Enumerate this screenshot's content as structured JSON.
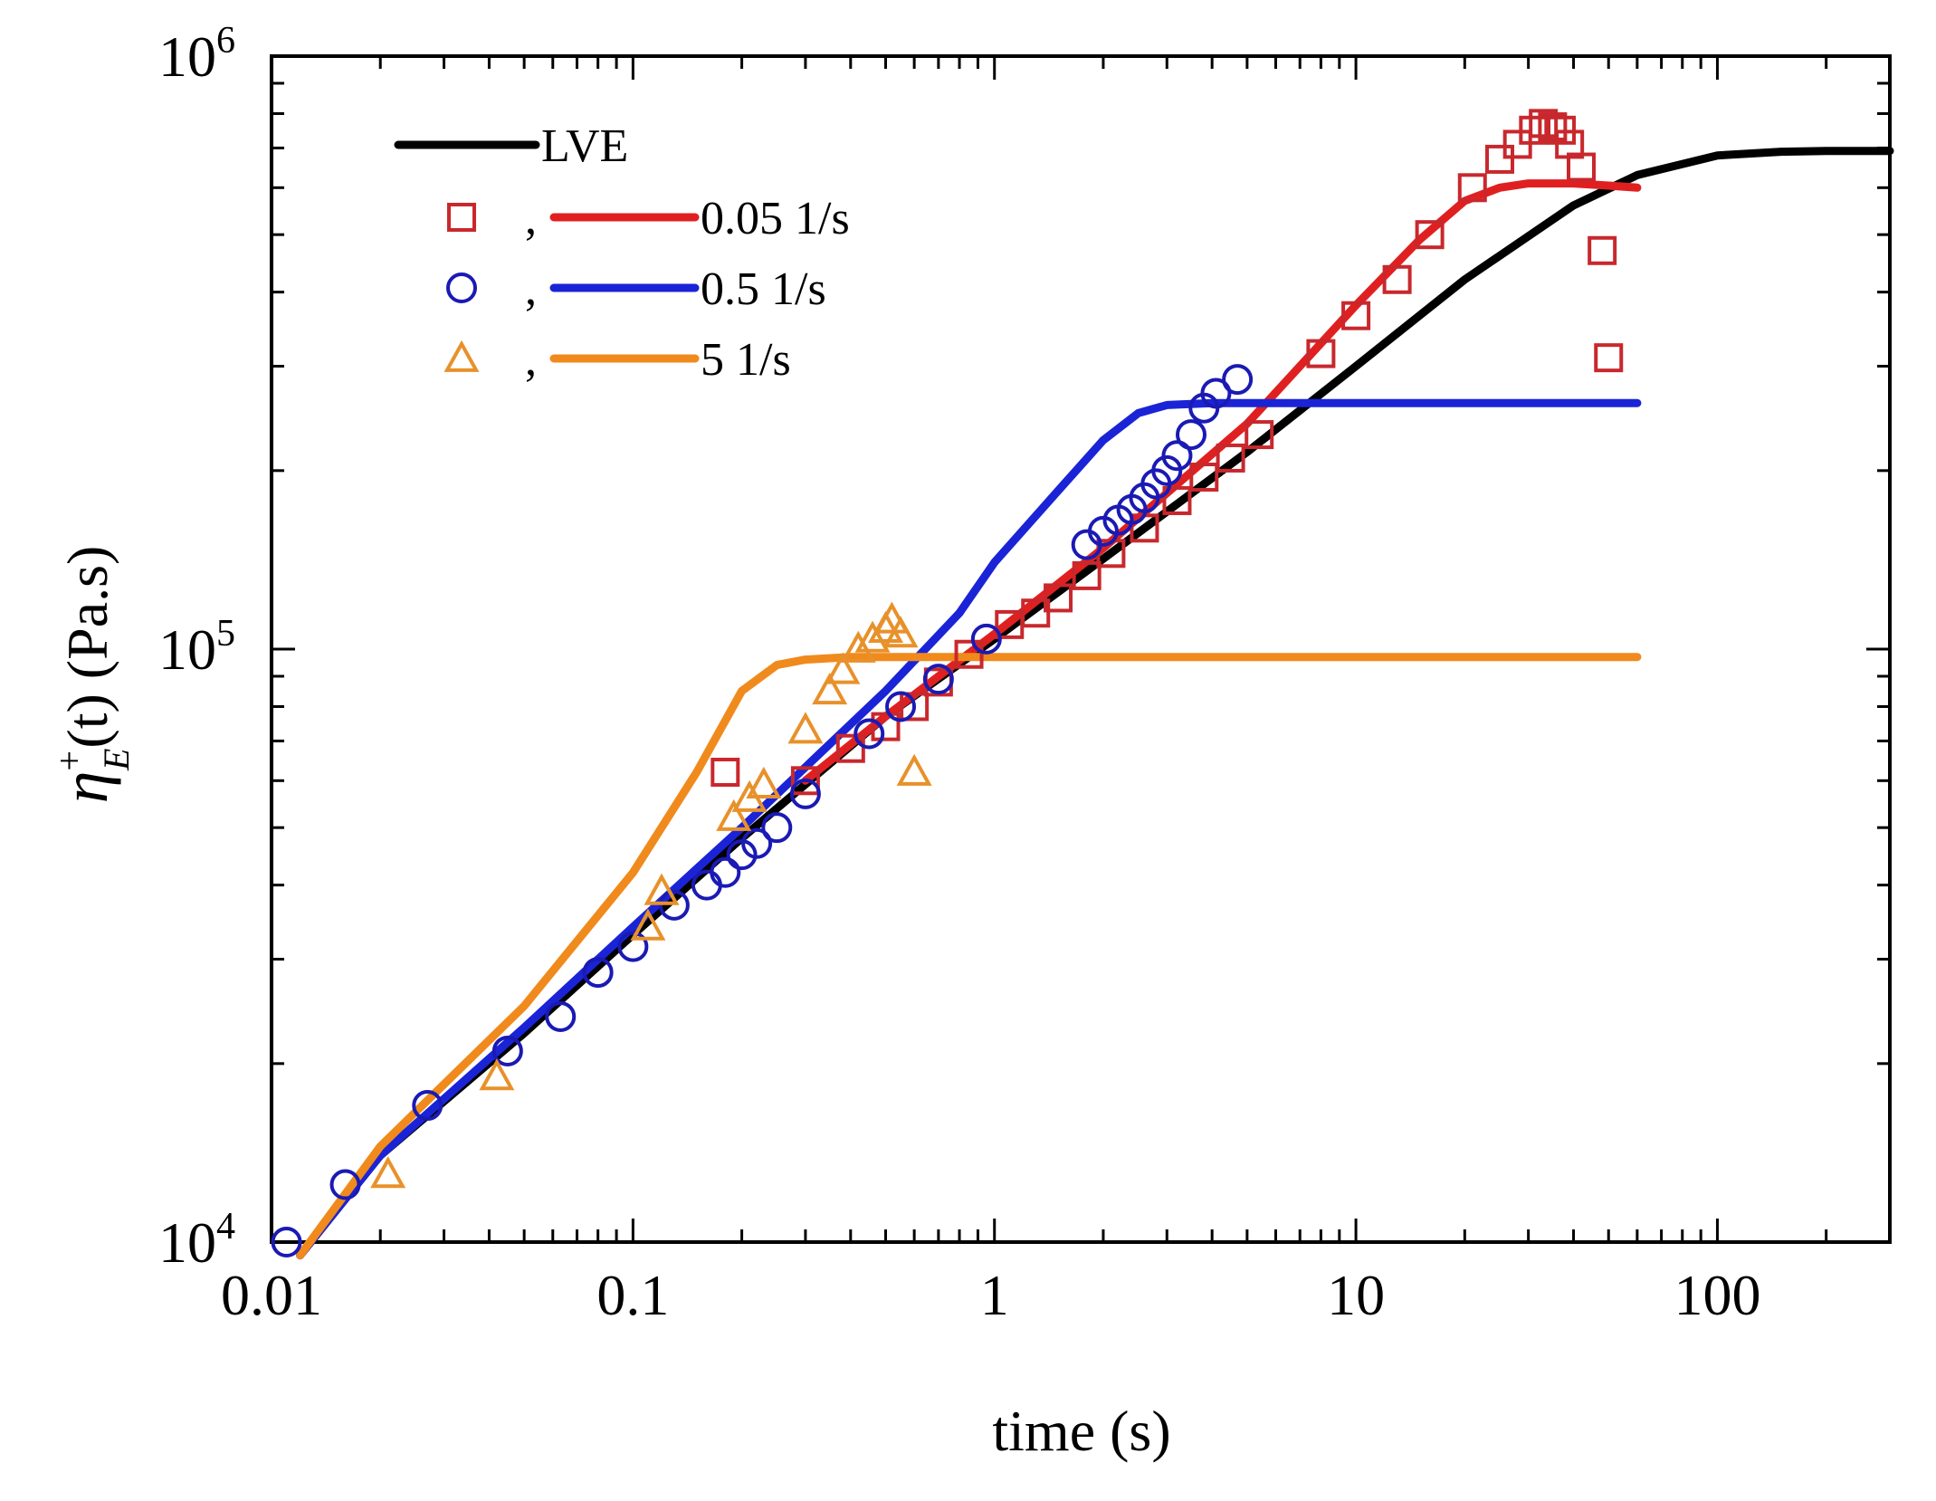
{
  "chart_data": {
    "type": "line",
    "xscale": "log",
    "yscale": "log",
    "xlim": [
      0.01,
      300
    ],
    "ylim": [
      10000,
      1000000
    ],
    "xlabel": "time (s)",
    "ylabel": {
      "symbol": "η",
      "superscript": "+",
      "subscript": "E",
      "rest": "(t)",
      "units": "(Pa.s)"
    },
    "x_ticks": [
      {
        "value": 0.01,
        "label": "0.01"
      },
      {
        "value": 0.1,
        "label": "0.1"
      },
      {
        "value": 1,
        "label": "1"
      },
      {
        "value": 10,
        "label": "10"
      },
      {
        "value": 100,
        "label": "100"
      }
    ],
    "y_ticks": [
      {
        "value": 10000,
        "base": "10",
        "exp": "4"
      },
      {
        "value": 100000,
        "base": "10",
        "exp": "5"
      },
      {
        "value": 1000000,
        "base": "10",
        "exp": "6"
      }
    ],
    "legend": {
      "position": "top-left",
      "separator": ",",
      "entries": [
        {
          "label": "LVE",
          "series": "LVE",
          "marker": null
        },
        {
          "label": "0.05 1/s",
          "series": "0.05",
          "marker": "square"
        },
        {
          "label": "0.5 1/s",
          "series": "0.5",
          "marker": "circle"
        },
        {
          "label": "5 1/s",
          "series": "5",
          "marker": "triangle"
        }
      ]
    },
    "lines": [
      {
        "name": "LVE",
        "color": "#000000",
        "x": [
          0.012,
          0.02,
          0.05,
          0.1,
          0.2,
          0.5,
          1,
          2,
          5,
          10,
          20,
          40,
          60,
          100,
          150,
          200,
          300
        ],
        "y": [
          9500,
          14000,
          22500,
          33000,
          48000,
          77000,
          104000,
          142000,
          215000,
          300000,
          420000,
          560000,
          630000,
          680000,
          690000,
          692000,
          692000
        ]
      },
      {
        "name": "0.05 1/s model",
        "color": "#e02020",
        "x": [
          0.3,
          0.5,
          1,
          2,
          5,
          10,
          15,
          20,
          25,
          30,
          40,
          50,
          60
        ],
        "y": [
          60000,
          77000,
          106000,
          148000,
          240000,
          380000,
          490000,
          570000,
          600000,
          610000,
          610000,
          605000,
          600000
        ]
      },
      {
        "name": "0.5 1/s model",
        "color": "#1a24d6",
        "x": [
          0.012,
          0.02,
          0.05,
          0.1,
          0.2,
          0.5,
          0.8,
          1,
          1.5,
          2,
          2.5,
          3,
          4,
          5,
          10,
          20,
          60
        ],
        "y": [
          9500,
          14000,
          23000,
          34000,
          50000,
          85000,
          115000,
          140000,
          185000,
          225000,
          250000,
          258000,
          260000,
          260000,
          260000,
          260000,
          260000
        ]
      },
      {
        "name": "5 1/s model",
        "color": "#f08a1c",
        "x": [
          0.012,
          0.02,
          0.05,
          0.1,
          0.15,
          0.2,
          0.25,
          0.3,
          0.4,
          0.6,
          1,
          10,
          60
        ],
        "y": [
          9500,
          14500,
          25000,
          42000,
          62000,
          85000,
          94000,
          96000,
          97000,
          97000,
          97000,
          97000,
          97000
        ]
      }
    ],
    "markers": [
      {
        "name": "0.05 1/s data",
        "marker": "square",
        "color": "#c8282d",
        "x": [
          0.18,
          0.3,
          0.4,
          0.5,
          0.6,
          0.7,
          0.85,
          1.1,
          1.3,
          1.5,
          1.8,
          2.1,
          2.6,
          3.2,
          3.8,
          4.5,
          5.4,
          8,
          10,
          13,
          16,
          21,
          25,
          28,
          31,
          33,
          35,
          37,
          39,
          42,
          48,
          50
        ],
        "y": [
          62000,
          60000,
          68000,
          74000,
          80000,
          88000,
          98000,
          110000,
          115000,
          122000,
          133000,
          145000,
          160000,
          178000,
          195000,
          210000,
          230000,
          315000,
          365000,
          420000,
          500000,
          600000,
          670000,
          710000,
          750000,
          770000,
          760000,
          750000,
          710000,
          650000,
          470000,
          310000
        ]
      },
      {
        "name": "0.5 1/s data",
        "marker": "circle",
        "color": "#1a1ab4",
        "x": [
          0.011,
          0.016,
          0.027,
          0.045,
          0.063,
          0.08,
          0.1,
          0.13,
          0.16,
          0.18,
          0.2,
          0.22,
          0.25,
          0.3,
          0.45,
          0.55,
          0.7,
          0.95,
          1.8,
          2.0,
          2.2,
          2.4,
          2.6,
          2.8,
          3.0,
          3.2,
          3.5,
          3.8,
          4.1,
          4.7
        ],
        "y": [
          10000,
          12500,
          17000,
          21000,
          24000,
          28500,
          31500,
          37000,
          40000,
          42000,
          45000,
          47000,
          50000,
          57000,
          72000,
          80000,
          89000,
          104000,
          150000,
          158000,
          165000,
          172000,
          180000,
          190000,
          200000,
          212000,
          230000,
          255000,
          270000,
          285000
        ]
      },
      {
        "name": "5 1/s data",
        "marker": "triangle",
        "color": "#e8912a",
        "x": [
          0.021,
          0.042,
          0.11,
          0.12,
          0.19,
          0.21,
          0.23,
          0.3,
          0.35,
          0.38,
          0.42,
          0.46,
          0.5,
          0.52,
          0.55,
          0.6
        ],
        "y": [
          13000,
          19000,
          34000,
          39000,
          52000,
          56000,
          59000,
          73000,
          85000,
          92000,
          100000,
          104000,
          108000,
          112000,
          106000,
          62000
        ]
      }
    ]
  }
}
